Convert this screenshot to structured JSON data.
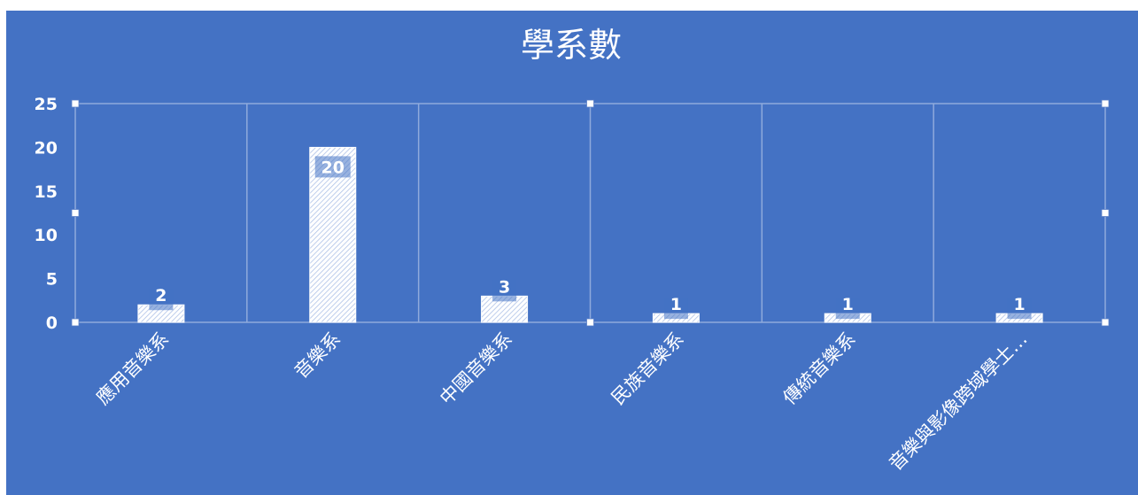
{
  "chart_data": {
    "type": "bar",
    "title": "學系數",
    "categories": [
      "應用音樂系",
      "音樂系",
      "中國音樂系",
      "民族音樂系",
      "傳統音樂系",
      "音樂與影像跨域學士…"
    ],
    "values": [
      2,
      20,
      3,
      1,
      1,
      1
    ],
    "ylim": [
      0,
      25
    ],
    "yticks": [
      0,
      5,
      10,
      15,
      20,
      25
    ],
    "xlabel": "",
    "ylabel": "",
    "grid": "vertical",
    "legend": "none",
    "data_labels": true,
    "colors": {
      "background": "#4472C4",
      "bar": "#E8EEF8",
      "text": "#FFFFFF",
      "gridline": "#8FAADC"
    }
  }
}
